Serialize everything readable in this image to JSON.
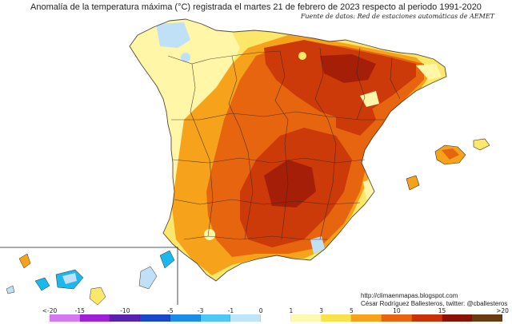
{
  "title": "Anomalía de la temperatura máxima (°C) registrada el martes 21 de febrero de 2023 respecto al periodo 1991-2020",
  "source": "Fuente de datos: Red de estaciones automáticas de AEMET",
  "credits": {
    "url": "http://climaenmapas.blogspot.com",
    "author": "César Rodríguez Ballesteros, twitter: @cballesteros"
  },
  "colors": {
    "sea": "#ffffff",
    "border": "#3a2a20",
    "lightblue": "#bfe0f6",
    "cyan": "#1bb8ee",
    "paleyellow": "#fff6a8",
    "yellow": "#fbe86a",
    "orange": "#f7a21b",
    "darkorange": "#e8650f",
    "red": "#cc3a0a",
    "darkred": "#a51e08"
  },
  "legend": {
    "ticks": [
      "<-20",
      "-15",
      "-10",
      "-5",
      "-3",
      "-1",
      "0",
      "1",
      "3",
      "5",
      "10",
      "15",
      ">20"
    ],
    "colors": [
      "#d678f0",
      "#a020d8",
      "#5a20b0",
      "#1848c8",
      "#1a8ee6",
      "#4cc8f4",
      "#bfe6f8",
      "#ffffff",
      "#fff8b0",
      "#fbe24a",
      "#f7a21b",
      "#e8650f",
      "#c83208",
      "#8a1204",
      "#6a3a10"
    ]
  }
}
